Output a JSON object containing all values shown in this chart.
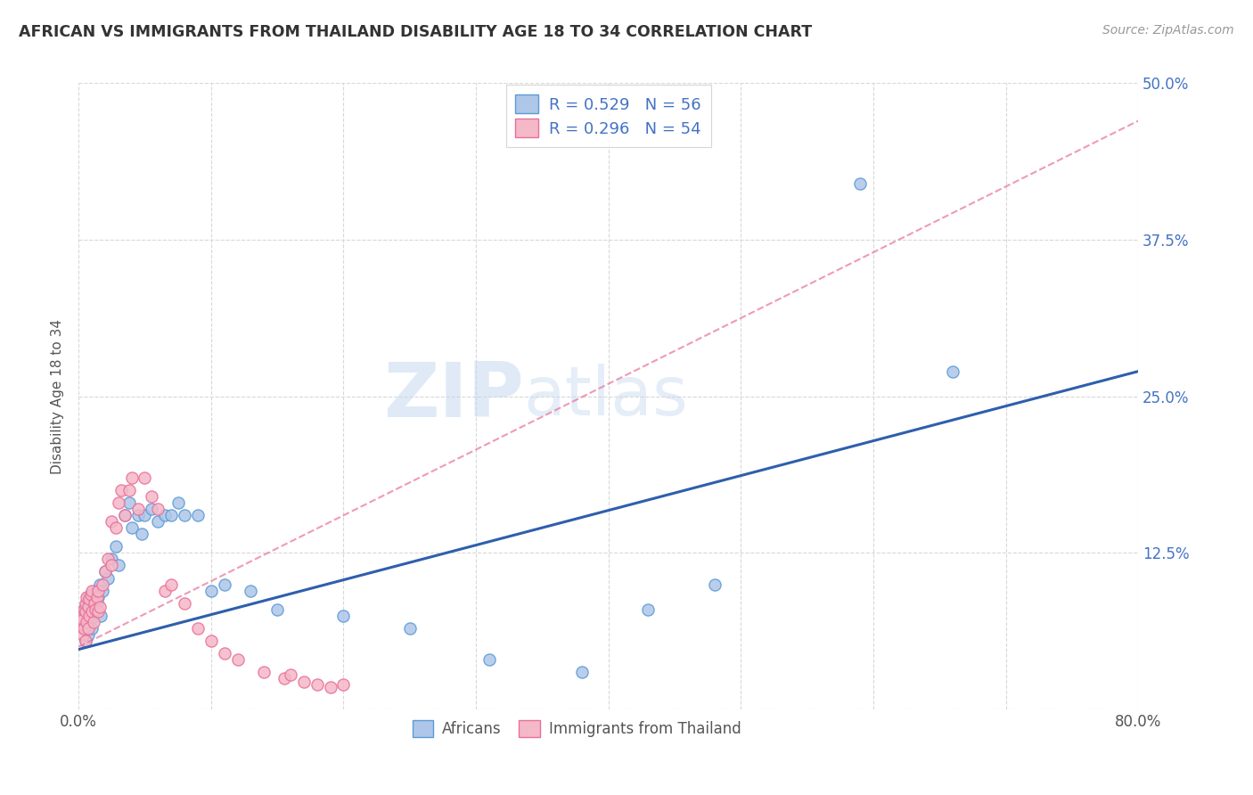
{
  "title": "AFRICAN VS IMMIGRANTS FROM THAILAND DISABILITY AGE 18 TO 34 CORRELATION CHART",
  "source": "Source: ZipAtlas.com",
  "ylabel": "Disability Age 18 to 34",
  "xlim": [
    0.0,
    0.8
  ],
  "ylim": [
    0.0,
    0.5
  ],
  "xticks": [
    0.0,
    0.1,
    0.2,
    0.3,
    0.4,
    0.5,
    0.6,
    0.7,
    0.8
  ],
  "xticklabels": [
    "0.0%",
    "",
    "",
    "",
    "",
    "",
    "",
    "",
    "80.0%"
  ],
  "yticks": [
    0.0,
    0.125,
    0.25,
    0.375,
    0.5
  ],
  "yticklabels": [
    "",
    "12.5%",
    "25.0%",
    "37.5%",
    "50.0%"
  ],
  "background_color": "#ffffff",
  "grid_color": "#d8d8d8",
  "watermark_zip": "ZIP",
  "watermark_atlas": "atlas",
  "series1_name": "Africans",
  "series2_name": "Immigrants from Thailand",
  "series1_color": "#aec6e8",
  "series2_color": "#f5b8c8",
  "series1_edge_color": "#5b9bd5",
  "series2_edge_color": "#e8709a",
  "trendline1_color": "#2e5fac",
  "trendline2_color": "#e8709a",
  "africans_x": [
    0.002,
    0.003,
    0.003,
    0.004,
    0.004,
    0.005,
    0.005,
    0.005,
    0.006,
    0.006,
    0.007,
    0.007,
    0.008,
    0.008,
    0.009,
    0.009,
    0.01,
    0.01,
    0.011,
    0.012,
    0.013,
    0.014,
    0.015,
    0.016,
    0.017,
    0.018,
    0.02,
    0.022,
    0.025,
    0.028,
    0.03,
    0.035,
    0.038,
    0.04,
    0.045,
    0.048,
    0.05,
    0.055,
    0.06,
    0.065,
    0.07,
    0.075,
    0.08,
    0.09,
    0.1,
    0.11,
    0.13,
    0.15,
    0.2,
    0.25,
    0.31,
    0.38,
    0.43,
    0.48,
    0.59,
    0.66
  ],
  "africans_y": [
    0.068,
    0.072,
    0.078,
    0.065,
    0.08,
    0.055,
    0.075,
    0.082,
    0.07,
    0.085,
    0.06,
    0.09,
    0.068,
    0.075,
    0.08,
    0.072,
    0.065,
    0.088,
    0.092,
    0.078,
    0.095,
    0.085,
    0.09,
    0.1,
    0.075,
    0.095,
    0.11,
    0.105,
    0.12,
    0.13,
    0.115,
    0.155,
    0.165,
    0.145,
    0.155,
    0.14,
    0.155,
    0.16,
    0.15,
    0.155,
    0.155,
    0.165,
    0.155,
    0.155,
    0.095,
    0.1,
    0.095,
    0.08,
    0.075,
    0.065,
    0.04,
    0.03,
    0.08,
    0.1,
    0.42,
    0.27
  ],
  "thailand_x": [
    0.002,
    0.002,
    0.003,
    0.003,
    0.004,
    0.004,
    0.005,
    0.005,
    0.005,
    0.006,
    0.006,
    0.007,
    0.007,
    0.008,
    0.008,
    0.009,
    0.01,
    0.01,
    0.011,
    0.012,
    0.013,
    0.014,
    0.015,
    0.015,
    0.016,
    0.018,
    0.02,
    0.022,
    0.025,
    0.025,
    0.028,
    0.03,
    0.032,
    0.035,
    0.038,
    0.04,
    0.045,
    0.05,
    0.055,
    0.06,
    0.065,
    0.07,
    0.08,
    0.09,
    0.1,
    0.11,
    0.12,
    0.14,
    0.155,
    0.16,
    0.17,
    0.18,
    0.19,
    0.2
  ],
  "thailand_y": [
    0.068,
    0.075,
    0.06,
    0.072,
    0.08,
    0.065,
    0.055,
    0.078,
    0.085,
    0.07,
    0.09,
    0.065,
    0.082,
    0.075,
    0.088,
    0.092,
    0.078,
    0.095,
    0.07,
    0.085,
    0.08,
    0.09,
    0.078,
    0.095,
    0.082,
    0.1,
    0.11,
    0.12,
    0.115,
    0.15,
    0.145,
    0.165,
    0.175,
    0.155,
    0.175,
    0.185,
    0.16,
    0.185,
    0.17,
    0.16,
    0.095,
    0.1,
    0.085,
    0.065,
    0.055,
    0.045,
    0.04,
    0.03,
    0.025,
    0.028,
    0.022,
    0.02,
    0.018,
    0.02
  ],
  "africans_trendline_x": [
    0.0,
    0.8
  ],
  "africans_trendline_y": [
    0.048,
    0.27
  ],
  "thailand_trendline_x": [
    0.0,
    0.8
  ],
  "thailand_trendline_y": [
    0.05,
    0.47
  ]
}
